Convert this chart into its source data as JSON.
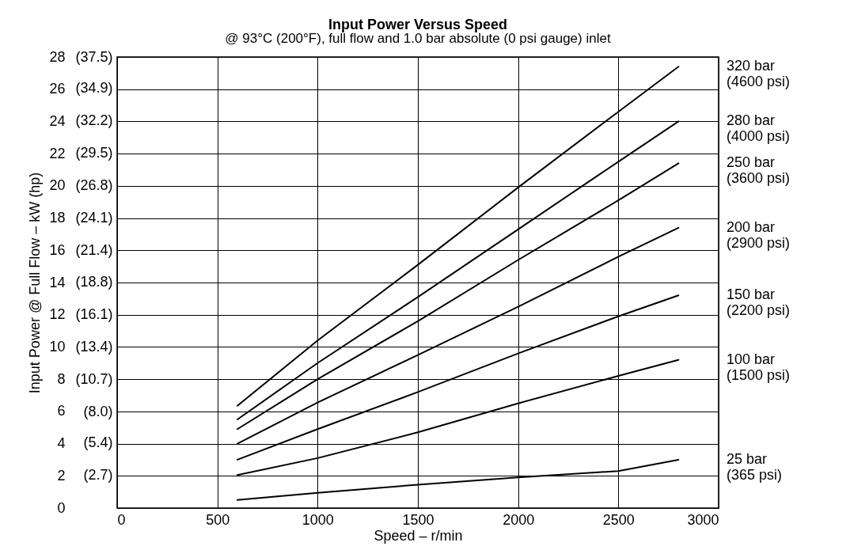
{
  "chart_data": {
    "type": "line",
    "title": "Input Power Versus Speed",
    "subtitle": "@ 93°C (200°F), full flow and 1.0 bar absolute (0 psi gauge) inlet",
    "xlabel": "Speed – r/min",
    "ylabel": "Input Power @ Full Flow – kW (hp)",
    "x": [
      600,
      1000,
      1500,
      2000,
      2500,
      2800
    ],
    "series": [
      {
        "name": "320 bar (4600 psi)",
        "color": "#000000",
        "values": [
          6.35,
          10.4,
          15.1,
          19.9,
          24.6,
          27.4
        ]
      },
      {
        "name": "280 bar (4000 psi)",
        "color": "#000000",
        "values": [
          5.5,
          9.0,
          13.1,
          17.3,
          21.5,
          24.0
        ]
      },
      {
        "name": "250 bar (3600 psi)",
        "color": "#000000",
        "values": [
          4.9,
          8.0,
          11.6,
          15.4,
          19.1,
          21.4
        ]
      },
      {
        "name": "200 bar (2900 psi)",
        "color": "#000000",
        "values": [
          4.0,
          6.55,
          9.5,
          12.5,
          15.6,
          17.4
        ]
      },
      {
        "name": "150 bar (2200 psi)",
        "color": "#000000",
        "values": [
          3.0,
          4.9,
          7.2,
          9.6,
          11.9,
          13.2
        ]
      },
      {
        "name": "100 bar (1500 psi)",
        "color": "#000000",
        "values": [
          2.05,
          3.1,
          4.7,
          6.5,
          8.2,
          9.2
        ]
      },
      {
        "name": "25 bar (365 psi)",
        "color": "#000000",
        "values": [
          0.5,
          0.95,
          1.45,
          1.9,
          2.3,
          3.0
        ]
      }
    ],
    "xlim": [
      0,
      3000
    ],
    "xticks": [
      0,
      500,
      1000,
      1500,
      2000,
      2500,
      3000
    ],
    "ylim": [
      0,
      28
    ],
    "yticks": [
      0,
      2,
      4,
      6,
      8,
      10,
      12,
      14,
      16,
      18,
      20,
      22,
      24,
      26,
      28
    ],
    "y2lim": [
      0,
      37.5
    ],
    "y2ticks": [
      {
        "value": 2.7,
        "label": "(2.7)"
      },
      {
        "value": 5.4,
        "label": "(5.4)"
      },
      {
        "value": 8.0,
        "label": "(8.0)"
      },
      {
        "value": 10.7,
        "label": "(10.7)"
      },
      {
        "value": 13.4,
        "label": "(13.4)"
      },
      {
        "value": 16.1,
        "label": "(16.1)"
      },
      {
        "value": 18.8,
        "label": "(18.8)"
      },
      {
        "value": 21.4,
        "label": "(21.4)"
      },
      {
        "value": 24.1,
        "label": "(24.1)"
      },
      {
        "value": 26.8,
        "label": "(26.8)"
      },
      {
        "value": 29.5,
        "label": "(29.5)"
      },
      {
        "value": 32.2,
        "label": "(32.2)"
      },
      {
        "value": 34.9,
        "label": "(34.9)"
      },
      {
        "value": 37.5,
        "label": "(37.5)"
      }
    ],
    "grid": true,
    "legend": false,
    "marker": "none",
    "line_style": "solid"
  }
}
